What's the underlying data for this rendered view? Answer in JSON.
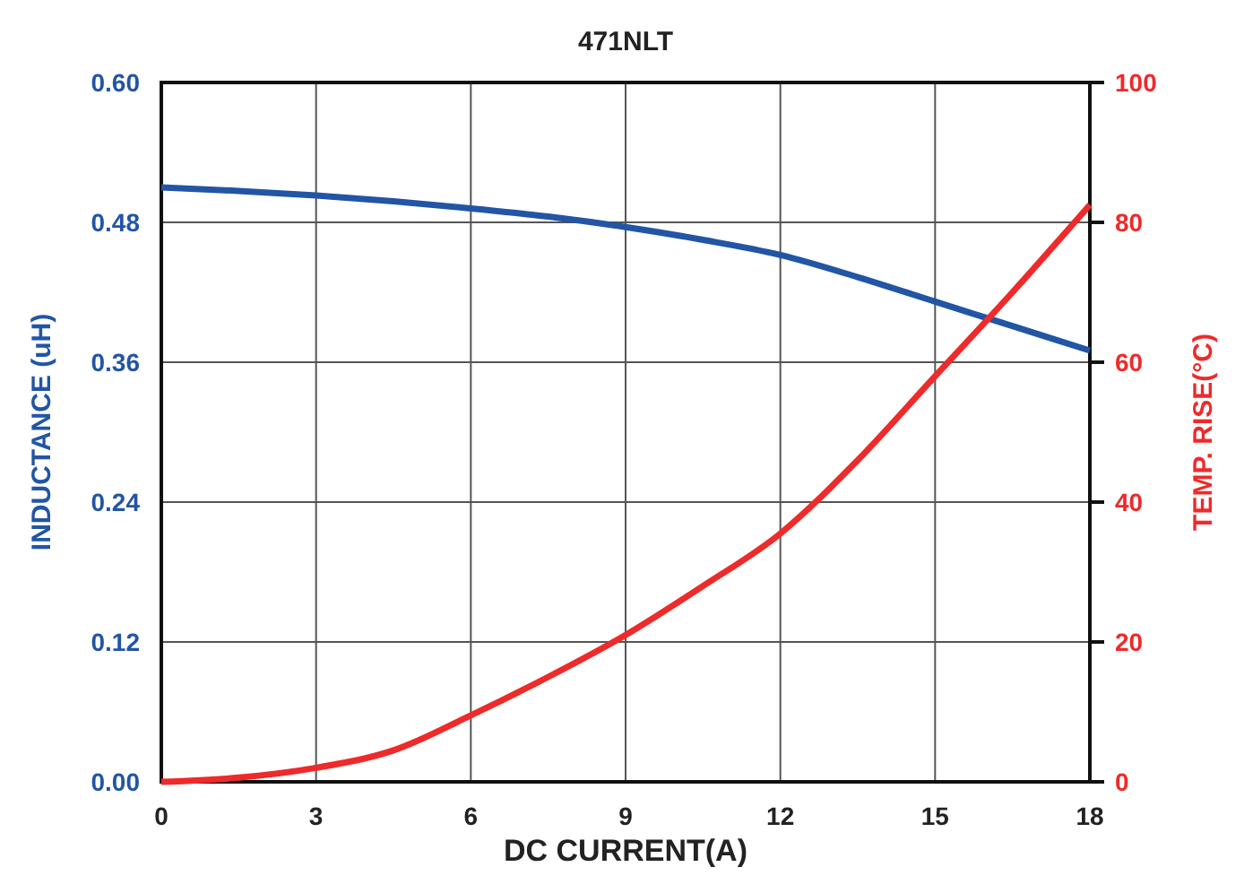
{
  "chart_data": {
    "type": "line",
    "title": "471NLT",
    "xlabel": "DC CURRENT(A)",
    "ylabel": "INDUCTANCE (uH)",
    "y2label": "TEMP. RISE(°C)",
    "x": [
      0,
      1.5,
      3,
      4.5,
      6,
      7.5,
      9,
      10.5,
      12,
      13.5,
      15,
      16.5,
      18
    ],
    "series": [
      {
        "color": "#2255a4",
        "values": [
          0.51,
          0.507,
          0.503,
          0.498,
          0.492,
          0.485,
          0.476,
          0.465,
          0.452,
          0.433,
          0.412,
          0.391,
          0.37
        ]
      },
      {
        "color": "#ee2a2a",
        "axis": "y2",
        "values": [
          0,
          0.6,
          2,
          4.5,
          9.5,
          15,
          21,
          28,
          35.5,
          46,
          58,
          70,
          82.5
        ]
      }
    ],
    "xlim": [
      0,
      18
    ],
    "xticks": [
      0,
      3,
      6,
      9,
      12,
      15,
      18
    ],
    "ylim": [
      0,
      0.6
    ],
    "yticks": [
      {
        "value": 0,
        "label": "0.00"
      },
      {
        "value": 0.12,
        "label": "0.12"
      },
      {
        "value": 0.24,
        "label": "0.24"
      },
      {
        "value": 0.36,
        "label": "0.36"
      },
      {
        "value": 0.48,
        "label": "0.48"
      },
      {
        "value": 0.6,
        "label": "0.60"
      }
    ],
    "y2lim": [
      0,
      100
    ],
    "y2ticks": [
      0,
      20,
      40,
      60,
      80,
      100
    ],
    "grid": true,
    "line_style": "solid",
    "marker": "none"
  }
}
